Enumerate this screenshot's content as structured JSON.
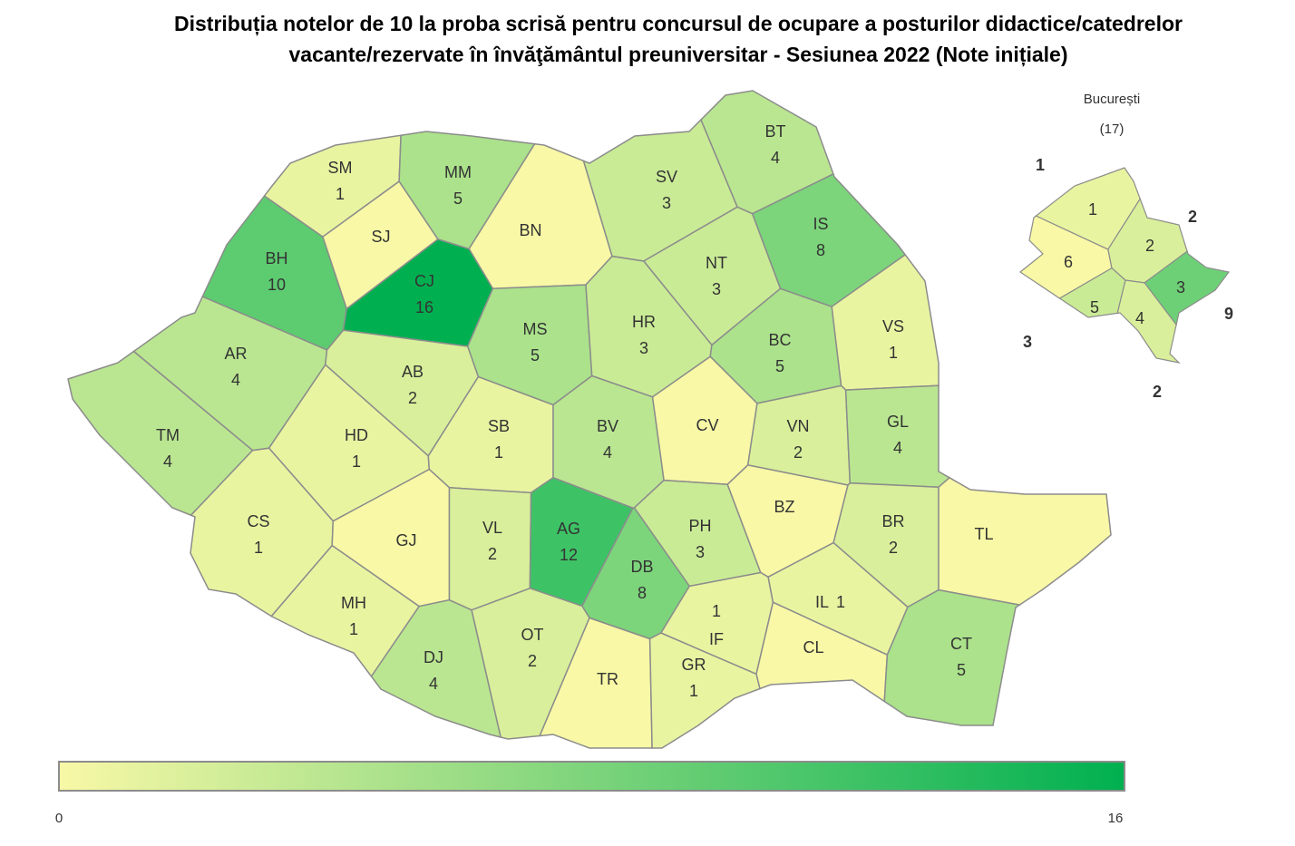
{
  "chart_data": {
    "type": "choropleth",
    "title": [
      "Distribuția notelor de 10 la proba scrisă pentru concursul de ocupare a posturilor didactice/catedrelor",
      "vacante/rezervate în învăţământul preuniversitar - Sesiunea 2022 (Note inițiale)"
    ],
    "categories": [
      "SM",
      "MM",
      "SJ",
      "BN",
      "BH",
      "CJ",
      "BT",
      "SV",
      "IS",
      "NT",
      "MS",
      "HR",
      "BC",
      "VS",
      "AR",
      "AB",
      "TM",
      "HD",
      "SB",
      "BV",
      "CV",
      "VN",
      "GL",
      "CS",
      "GJ",
      "VL",
      "AG",
      "DB",
      "PH",
      "BZ",
      "BR",
      "TL",
      "MH",
      "OT",
      "DJ",
      "TR",
      "GR",
      "IF",
      "CL",
      "IL",
      "CT"
    ],
    "values": [
      1,
      5,
      null,
      null,
      10,
      16,
      4,
      3,
      8,
      3,
      5,
      3,
      5,
      1,
      4,
      2,
      4,
      1,
      1,
      4,
      null,
      2,
      4,
      1,
      null,
      2,
      12,
      8,
      3,
      null,
      2,
      null,
      1,
      2,
      4,
      null,
      1,
      1,
      null,
      1,
      5
    ],
    "color_scale": {
      "min": 0,
      "max": 16,
      "colors": [
        "#f8f8a6",
        "#00b050"
      ],
      "ticks": [
        0,
        16
      ]
    },
    "inset": {
      "title": "București",
      "subtitle": "(17)",
      "categories": [
        "1",
        "2",
        "3",
        "4",
        "5",
        "6"
      ],
      "values": [
        1,
        2,
        9,
        2,
        3,
        null
      ]
    }
  }
}
